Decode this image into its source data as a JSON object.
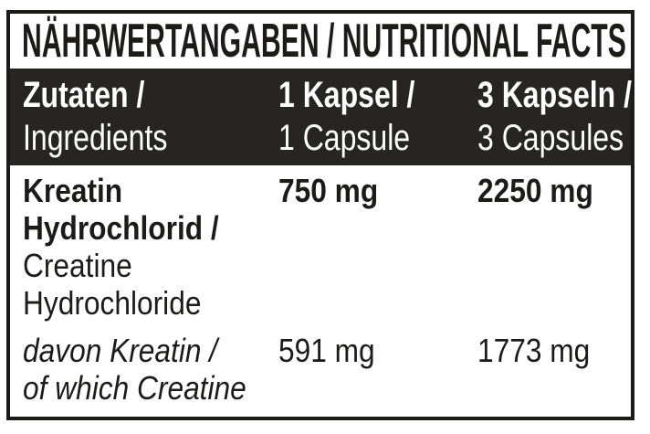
{
  "colors": {
    "page_bg": "#ffffff",
    "band_bg": "#272524",
    "border": "#1d1b1a",
    "text_dark": "#1d1b1a",
    "text_light": "#ffffff"
  },
  "label": {
    "title": "NÄHRWERTANGABEN / NUTRITIONAL FACTS",
    "columns": [
      {
        "de": "Zutaten /",
        "en": "Ingredients"
      },
      {
        "de": "1 Kapsel /",
        "en": "1 Capsule"
      },
      {
        "de": "3 Kapseln /",
        "en": "3 Capsules"
      }
    ],
    "rows": [
      {
        "name_de_lines": [
          "Kreatin",
          "Hydrochlorid /"
        ],
        "name_en_lines": [
          "Creatine",
          "Hydrochloride"
        ],
        "per_1_capsule": "750 mg",
        "per_3_capsules": "2250 mg"
      },
      {
        "name_lines": [
          "davon Kreatin /",
          "of which Creatine"
        ],
        "per_1_capsule": "591 mg",
        "per_3_capsules": "1773 mg"
      }
    ]
  }
}
